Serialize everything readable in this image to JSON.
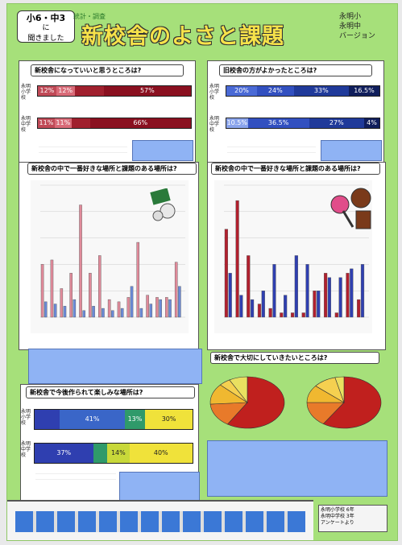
{
  "header": {
    "note_line1": "小6・中3",
    "note_line2": "に",
    "note_line3": "聞きました",
    "tag": "統計・調査",
    "title": "新校舎のよさと課題",
    "authors": [
      "永明小",
      "永明中",
      "バージョン"
    ]
  },
  "q1": {
    "title": "新校舎になっていいと思うところは?",
    "rows": [
      {
        "label": "永明小学校",
        "segments": [
          {
            "text": "12%",
            "color": "#c04a57"
          },
          {
            "text": "12%",
            "color": "#d96b78"
          },
          {
            "text": "",
            "color": "#a0202e"
          },
          {
            "text": "57%",
            "color": "#8a1020"
          }
        ]
      },
      {
        "label": "永明中学校",
        "segments": [
          {
            "text": "11%",
            "color": "#c04a57"
          },
          {
            "text": "11%",
            "color": "#d96b78"
          },
          {
            "text": "",
            "color": "#a0202e"
          },
          {
            "text": "66%",
            "color": "#8a1020"
          }
        ]
      }
    ]
  },
  "q2": {
    "title": "旧校舎の方がよかったところは?",
    "rows": [
      {
        "label": "永明小学校",
        "segments": [
          {
            "text": "20%",
            "color": "#4a6ad6"
          },
          {
            "text": "24%",
            "color": "#3250c0"
          },
          {
            "text": "33%",
            "color": "#203a9a"
          },
          {
            "text": "16.5%",
            "color": "#101e5c"
          }
        ]
      },
      {
        "label": "永明中学校",
        "segments": [
          {
            "text": "10.5%",
            "color": "#8aa4ec"
          },
          {
            "text": "36.5%",
            "color": "#3250c0"
          },
          {
            "text": "27%",
            "color": "#203a9a"
          },
          {
            "text": "4%",
            "color": "#101e5c"
          }
        ]
      }
    ]
  },
  "q3": {
    "title": "新校舎の中で一番好きな場所と課題のある場所は?"
  },
  "q4": {
    "title": "新校舎の中で一番好きな場所と課題のある場所は?"
  },
  "q5": {
    "title": "新校舎で大切にしていきたいところは?"
  },
  "q6": {
    "title": "新校舎で今後作られて楽しみな場所は?",
    "rows": [
      {
        "label": "永明小学校",
        "segments": [
          {
            "text": "",
            "color": "#2f3fb0"
          },
          {
            "text": "41%",
            "color": "#3a66c8"
          },
          {
            "text": "13%",
            "color": "#2f9a6a"
          },
          {
            "text": "30%",
            "color": "#f0e23a"
          }
        ]
      },
      {
        "label": "永明中学校",
        "segments": [
          {
            "text": "37%",
            "color": "#2f3fb0"
          },
          {
            "text": "",
            "color": "#2f9a6a"
          },
          {
            "text": "14%",
            "color": "#c8d83a"
          },
          {
            "text": "40%",
            "color": "#f0e23a"
          }
        ]
      }
    ]
  },
  "footer": {
    "lines": [
      "永明小学校 6年",
      "永明中学校 3年",
      "アンケートより"
    ]
  },
  "colors": {
    "poster": "#a6e07a",
    "title": "#f6e24a"
  },
  "chart_data": [
    {
      "type": "bar",
      "series": [
        {
          "values": [
            24,
            26,
            13,
            20,
            51,
            20,
            28,
            8,
            7,
            9,
            34,
            10,
            9,
            9,
            25
          ]
        },
        {
          "values": [
            7,
            6,
            5,
            8,
            3,
            5,
            4,
            3,
            4,
            14,
            4,
            6,
            8,
            8,
            14
          ]
        }
      ]
    },
    {
      "type": "bar",
      "series": [
        {
          "values": [
            40,
            53,
            28,
            6,
            4,
            2,
            2,
            2,
            12,
            20,
            2,
            20,
            8
          ]
        },
        {
          "values": [
            20,
            10,
            8,
            12,
            24,
            10,
            28,
            24,
            12,
            18,
            18,
            22,
            24
          ]
        }
      ]
    },
    {
      "type": "pie",
      "series": [
        {
          "values": [
            59,
            15,
            13,
            5,
            8
          ]
        }
      ]
    },
    {
      "type": "pie",
      "series": [
        {
          "values": [
            53.5,
            14,
            10,
            9,
            3.5
          ]
        }
      ]
    }
  ]
}
